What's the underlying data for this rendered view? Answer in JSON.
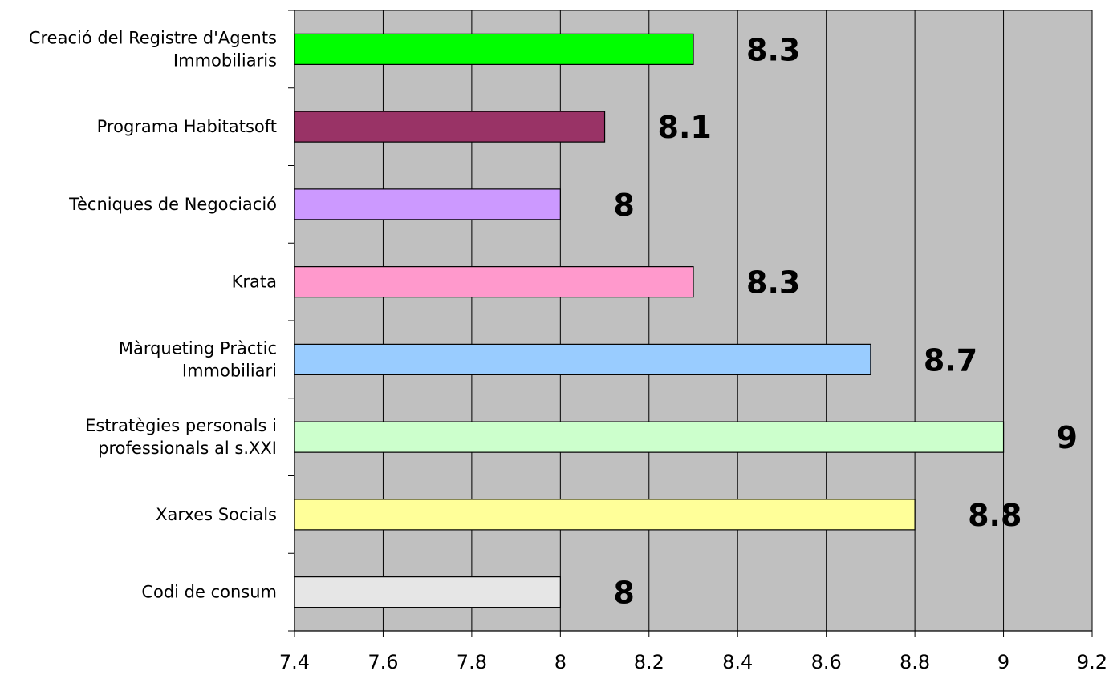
{
  "chart_data": {
    "type": "bar",
    "orientation": "horizontal",
    "categories": [
      "Creació del Registre d'Agents Immobiliaris",
      "Programa Habitatsoft",
      "Tècniques de Negociació",
      "Krata",
      "Màrqueting Pràctic Immobiliari",
      "Estratègies personals i professionals al s.XXI",
      "Xarxes Socials",
      "Codi de consum"
    ],
    "category_lines": [
      [
        "Creació del Registre d'Agents",
        "Immobiliaris"
      ],
      [
        "Programa Habitatsoft"
      ],
      [
        "Tècniques de Negociació"
      ],
      [
        "Krata"
      ],
      [
        "Màrqueting Pràctic",
        "Immobiliari"
      ],
      [
        "Estratègies personals i",
        "professionals al s.XXI"
      ],
      [
        "Xarxes Socials"
      ],
      [
        "Codi de consum"
      ]
    ],
    "values": [
      8.3,
      8.1,
      8,
      8.3,
      8.7,
      9,
      8.8,
      8
    ],
    "data_labels": [
      "8.3",
      "8.1",
      "8",
      "8.3",
      "8.7",
      "9",
      "8.8",
      "8"
    ],
    "bar_colors": [
      "#00ff00",
      "#993366",
      "#cc99ff",
      "#ff99cc",
      "#99ccff",
      "#ccffcc",
      "#ffff99",
      "#e6e6e6"
    ],
    "xlim": [
      7.4,
      9.2
    ],
    "x_ticks": [
      "7.4",
      "7.6",
      "7.8",
      "8",
      "8.2",
      "8.4",
      "8.6",
      "8.8",
      "9",
      "9.2"
    ],
    "grid": true,
    "plot_background": "#c0c0c0",
    "title": "",
    "xlabel": "",
    "ylabel": ""
  }
}
